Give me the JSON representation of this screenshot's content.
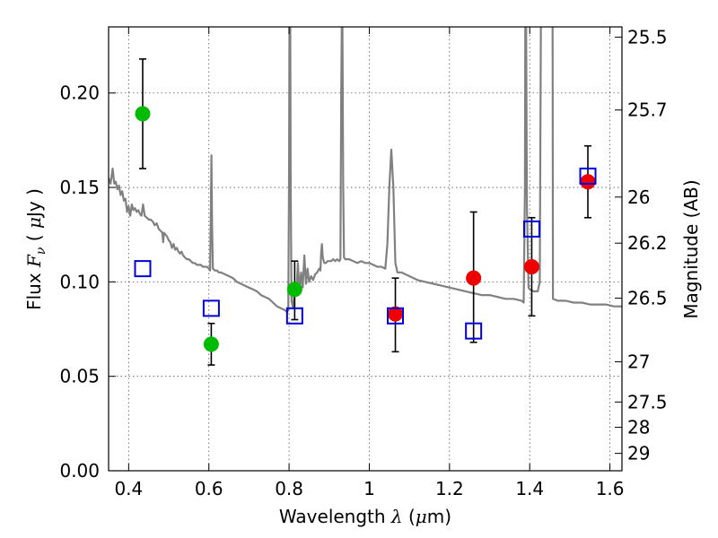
{
  "chart_data": {
    "type": "scatter",
    "xlabel_parts": [
      "Wavelength  ",
      "λ",
      " (",
      "μ",
      "m)"
    ],
    "ylabel_parts": [
      "Flux  ",
      "F",
      "ν",
      "  ( ",
      "μ",
      "Jy )"
    ],
    "y2label": "Magnitude (AB)",
    "xlim": [
      0.35,
      1.63
    ],
    "ylim": [
      0.0,
      0.235
    ],
    "grid": true,
    "x_ticks": [
      0.4,
      0.6,
      0.8,
      1.0,
      1.2,
      1.4,
      1.6
    ],
    "x_tick_labels": [
      "0.4",
      "0.6",
      "0.8",
      "1",
      "1.2",
      "1.4",
      "1.6"
    ],
    "y_ticks": [
      0.0,
      0.05,
      0.1,
      0.15,
      0.2
    ],
    "y_tick_labels": [
      "0.00",
      "0.05",
      "0.10",
      "0.15",
      "0.20"
    ],
    "mag_ticks": [
      {
        "label": "25.5",
        "flux": 0.2296
      },
      {
        "label": "25.7",
        "flux": 0.191
      },
      {
        "label": "26",
        "flux": 0.1449
      },
      {
        "label": "26.2",
        "flux": 0.1205
      },
      {
        "label": "26.5",
        "flux": 0.0914
      },
      {
        "label": "27",
        "flux": 0.0577
      },
      {
        "label": "27.5",
        "flux": 0.0364
      },
      {
        "label": "28",
        "flux": 0.023
      },
      {
        "label": "29",
        "flux": 0.0092
      }
    ],
    "series": [
      {
        "marker": "circle",
        "color": "#00bb00",
        "points": [
          {
            "x": 0.435,
            "y": 0.189,
            "yerr_low": 0.16,
            "yerr_high": 0.218
          },
          {
            "x": 0.606,
            "y": 0.067,
            "yerr_low": 0.056,
            "yerr_high": 0.078
          },
          {
            "x": 0.814,
            "y": 0.096,
            "yerr_low": 0.08,
            "yerr_high": 0.111
          }
        ]
      },
      {
        "marker": "circle",
        "color": "#ee0000",
        "points": [
          {
            "x": 1.065,
            "y": 0.083,
            "yerr_low": 0.063,
            "yerr_high": 0.102
          },
          {
            "x": 1.26,
            "y": 0.102,
            "yerr_low": 0.068,
            "yerr_high": 0.137
          },
          {
            "x": 1.405,
            "y": 0.108,
            "yerr_low": 0.082,
            "yerr_high": 0.134
          },
          {
            "x": 1.545,
            "y": 0.153,
            "yerr_low": 0.134,
            "yerr_high": 0.172
          }
        ]
      },
      {
        "marker": "square-open",
        "color": "#0000dd",
        "points": [
          {
            "x": 0.435,
            "y": 0.107
          },
          {
            "x": 0.606,
            "y": 0.086
          },
          {
            "x": 0.814,
            "y": 0.082
          },
          {
            "x": 1.065,
            "y": 0.082
          },
          {
            "x": 1.26,
            "y": 0.074
          },
          {
            "x": 1.405,
            "y": 0.128
          },
          {
            "x": 1.545,
            "y": 0.156
          }
        ]
      }
    ],
    "model_spectrum": {
      "color": "#808080",
      "points": [
        [
          0.35,
          0.155
        ],
        [
          0.355,
          0.152
        ],
        [
          0.36,
          0.16
        ],
        [
          0.364,
          0.152
        ],
        [
          0.368,
          0.153
        ],
        [
          0.372,
          0.149
        ],
        [
          0.376,
          0.151
        ],
        [
          0.38,
          0.146
        ],
        [
          0.384,
          0.148
        ],
        [
          0.388,
          0.143
        ],
        [
          0.392,
          0.144
        ],
        [
          0.396,
          0.137
        ],
        [
          0.4,
          0.14
        ],
        [
          0.404,
          0.135
        ],
        [
          0.408,
          0.141
        ],
        [
          0.412,
          0.138
        ],
        [
          0.416,
          0.139
        ],
        [
          0.42,
          0.137
        ],
        [
          0.424,
          0.138
        ],
        [
          0.428,
          0.136
        ],
        [
          0.432,
          0.135
        ],
        [
          0.436,
          0.141
        ],
        [
          0.44,
          0.135
        ],
        [
          0.445,
          0.134
        ],
        [
          0.45,
          0.133
        ],
        [
          0.455,
          0.133
        ],
        [
          0.46,
          0.132
        ],
        [
          0.465,
          0.13
        ],
        [
          0.47,
          0.131
        ],
        [
          0.475,
          0.128
        ],
        [
          0.48,
          0.127
        ],
        [
          0.484,
          0.126
        ],
        [
          0.486,
          0.121
        ],
        [
          0.488,
          0.126
        ],
        [
          0.492,
          0.125
        ],
        [
          0.496,
          0.124
        ],
        [
          0.5,
          0.122
        ],
        [
          0.504,
          0.121
        ],
        [
          0.508,
          0.118
        ],
        [
          0.512,
          0.12
        ],
        [
          0.516,
          0.117
        ],
        [
          0.52,
          0.118
        ],
        [
          0.524,
          0.116
        ],
        [
          0.528,
          0.115
        ],
        [
          0.532,
          0.116
        ],
        [
          0.536,
          0.114
        ],
        [
          0.54,
          0.113
        ],
        [
          0.545,
          0.112
        ],
        [
          0.55,
          0.112
        ],
        [
          0.555,
          0.111
        ],
        [
          0.56,
          0.11
        ],
        [
          0.565,
          0.11
        ],
        [
          0.57,
          0.109
        ],
        [
          0.575,
          0.109
        ],
        [
          0.58,
          0.109
        ],
        [
          0.585,
          0.108
        ],
        [
          0.59,
          0.108
        ],
        [
          0.595,
          0.108
        ],
        [
          0.6,
          0.107
        ],
        [
          0.603,
          0.106
        ],
        [
          0.605,
          0.14
        ],
        [
          0.6065,
          0.167
        ],
        [
          0.608,
          0.13
        ],
        [
          0.61,
          0.107
        ],
        [
          0.615,
          0.106
        ],
        [
          0.62,
          0.106
        ],
        [
          0.625,
          0.105
        ],
        [
          0.63,
          0.105
        ],
        [
          0.64,
          0.104
        ],
        [
          0.65,
          0.103
        ],
        [
          0.66,
          0.102
        ],
        [
          0.67,
          0.1
        ],
        [
          0.68,
          0.099
        ],
        [
          0.69,
          0.098
        ],
        [
          0.7,
          0.097
        ],
        [
          0.71,
          0.096
        ],
        [
          0.72,
          0.095
        ],
        [
          0.73,
          0.093
        ],
        [
          0.74,
          0.092
        ],
        [
          0.75,
          0.091
        ],
        [
          0.76,
          0.089
        ],
        [
          0.77,
          0.087
        ],
        [
          0.78,
          0.086
        ],
        [
          0.79,
          0.085
        ],
        [
          0.795,
          0.084
        ],
        [
          0.798,
          0.085
        ],
        [
          0.8,
          0.16
        ],
        [
          0.801,
          0.24
        ],
        [
          0.803,
          0.24
        ],
        [
          0.804,
          0.15
        ],
        [
          0.806,
          0.09
        ],
        [
          0.81,
          0.086
        ],
        [
          0.815,
          0.099
        ],
        [
          0.818,
          0.093
        ],
        [
          0.822,
          0.11
        ],
        [
          0.826,
          0.095
        ],
        [
          0.83,
          0.105
        ],
        [
          0.834,
          0.097
        ],
        [
          0.838,
          0.114
        ],
        [
          0.842,
          0.099
        ],
        [
          0.846,
          0.107
        ],
        [
          0.85,
          0.1
        ],
        [
          0.855,
          0.103
        ],
        [
          0.86,
          0.101
        ],
        [
          0.865,
          0.104
        ],
        [
          0.87,
          0.105
        ],
        [
          0.875,
          0.107
        ],
        [
          0.878,
          0.106
        ],
        [
          0.88,
          0.115
        ],
        [
          0.882,
          0.12
        ],
        [
          0.884,
          0.113
        ],
        [
          0.888,
          0.11
        ],
        [
          0.892,
          0.11
        ],
        [
          0.896,
          0.111
        ],
        [
          0.9,
          0.111
        ],
        [
          0.905,
          0.111
        ],
        [
          0.91,
          0.112
        ],
        [
          0.915,
          0.111
        ],
        [
          0.92,
          0.112
        ],
        [
          0.925,
          0.111
        ],
        [
          0.928,
          0.112
        ],
        [
          0.93,
          0.2
        ],
        [
          0.9315,
          0.24
        ],
        [
          0.933,
          0.24
        ],
        [
          0.935,
          0.15
        ],
        [
          0.937,
          0.113
        ],
        [
          0.94,
          0.112
        ],
        [
          0.95,
          0.112
        ],
        [
          0.96,
          0.111
        ],
        [
          0.97,
          0.11
        ],
        [
          0.98,
          0.111
        ],
        [
          0.99,
          0.11
        ],
        [
          1.0,
          0.11
        ],
        [
          1.01,
          0.109
        ],
        [
          1.02,
          0.108
        ],
        [
          1.03,
          0.108
        ],
        [
          1.04,
          0.107
        ],
        [
          1.045,
          0.12
        ],
        [
          1.05,
          0.15
        ],
        [
          1.055,
          0.17
        ],
        [
          1.06,
          0.15
        ],
        [
          1.065,
          0.11
        ],
        [
          1.07,
          0.105
        ],
        [
          1.08,
          0.105
        ],
        [
          1.09,
          0.104
        ],
        [
          1.1,
          0.103
        ],
        [
          1.12,
          0.101
        ],
        [
          1.14,
          0.1
        ],
        [
          1.16,
          0.099
        ],
        [
          1.18,
          0.098
        ],
        [
          1.2,
          0.097
        ],
        [
          1.22,
          0.096
        ],
        [
          1.24,
          0.095
        ],
        [
          1.26,
          0.094
        ],
        [
          1.28,
          0.093
        ],
        [
          1.3,
          0.093
        ],
        [
          1.32,
          0.092
        ],
        [
          1.34,
          0.091
        ],
        [
          1.36,
          0.091
        ],
        [
          1.38,
          0.09
        ],
        [
          1.385,
          0.089
        ],
        [
          1.388,
          0.15
        ],
        [
          1.389,
          0.24
        ],
        [
          1.391,
          0.24
        ],
        [
          1.393,
          0.14
        ],
        [
          1.397,
          0.097
        ],
        [
          1.4,
          0.096
        ],
        [
          1.41,
          0.095
        ],
        [
          1.42,
          0.095
        ],
        [
          1.425,
          0.1
        ],
        [
          1.428,
          0.24
        ],
        [
          1.432,
          0.24
        ],
        [
          1.435,
          0.24
        ],
        [
          1.44,
          0.24
        ],
        [
          1.445,
          0.24
        ],
        [
          1.45,
          0.24
        ],
        [
          1.455,
          0.24
        ],
        [
          1.457,
          0.24
        ],
        [
          1.458,
          0.091
        ],
        [
          1.47,
          0.09
        ],
        [
          1.49,
          0.09
        ],
        [
          1.51,
          0.089
        ],
        [
          1.53,
          0.089
        ],
        [
          1.55,
          0.088
        ],
        [
          1.57,
          0.088
        ],
        [
          1.59,
          0.088
        ],
        [
          1.61,
          0.087
        ],
        [
          1.63,
          0.087
        ]
      ]
    }
  }
}
